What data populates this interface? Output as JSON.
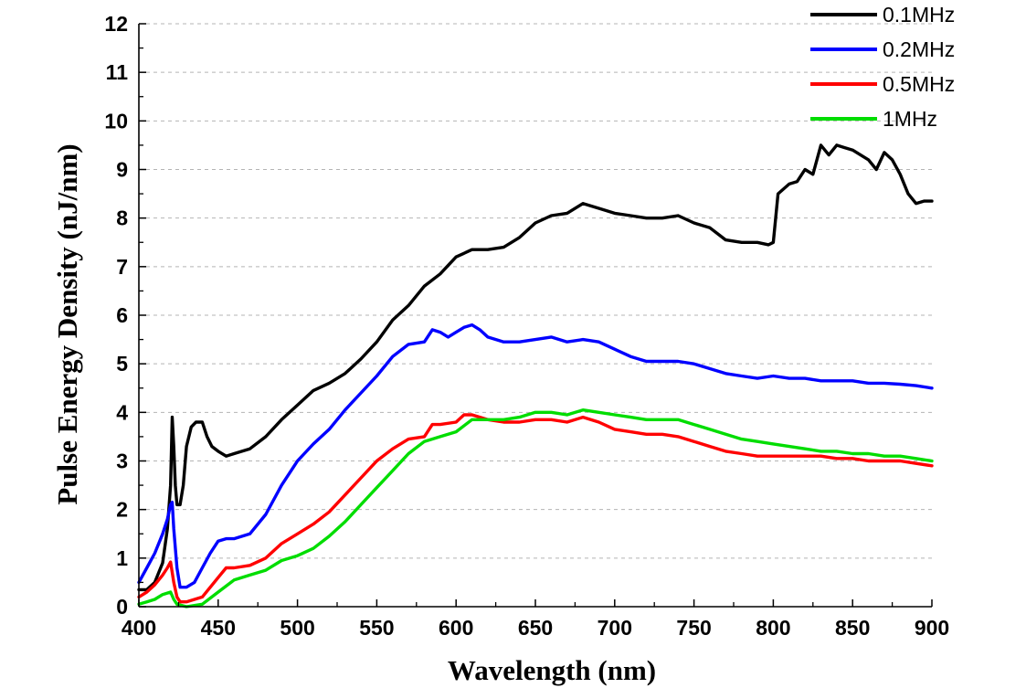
{
  "chart_data": {
    "type": "line",
    "title": "",
    "xlabel": "Wavelength (nm)",
    "ylabel": "Pulse Energy Density (nJ/nm)",
    "xlim": [
      400,
      900
    ],
    "ylim": [
      0,
      12
    ],
    "x_ticks": [
      400,
      450,
      500,
      550,
      600,
      650,
      700,
      750,
      800,
      850,
      900
    ],
    "y_ticks": [
      0,
      1,
      2,
      3,
      4,
      5,
      6,
      7,
      8,
      9,
      10,
      11,
      12
    ],
    "grid": "horizontal dashed",
    "legend_position": "top-right",
    "series": [
      {
        "name": "0.1MHz",
        "color": "#000000",
        "points": [
          [
            400,
            0.35
          ],
          [
            405,
            0.35
          ],
          [
            410,
            0.5
          ],
          [
            415,
            0.9
          ],
          [
            418,
            1.6
          ],
          [
            420,
            2.5
          ],
          [
            421,
            3.9
          ],
          [
            422,
            3.3
          ],
          [
            423,
            2.5
          ],
          [
            424,
            2.1
          ],
          [
            426,
            2.1
          ],
          [
            428,
            2.5
          ],
          [
            430,
            3.3
          ],
          [
            433,
            3.7
          ],
          [
            436,
            3.8
          ],
          [
            440,
            3.8
          ],
          [
            443,
            3.5
          ],
          [
            446,
            3.3
          ],
          [
            450,
            3.2
          ],
          [
            455,
            3.1
          ],
          [
            460,
            3.15
          ],
          [
            470,
            3.25
          ],
          [
            480,
            3.5
          ],
          [
            490,
            3.85
          ],
          [
            500,
            4.15
          ],
          [
            510,
            4.45
          ],
          [
            520,
            4.6
          ],
          [
            530,
            4.8
          ],
          [
            540,
            5.1
          ],
          [
            550,
            5.45
          ],
          [
            560,
            5.9
          ],
          [
            570,
            6.2
          ],
          [
            580,
            6.6
          ],
          [
            590,
            6.85
          ],
          [
            600,
            7.2
          ],
          [
            610,
            7.35
          ],
          [
            620,
            7.35
          ],
          [
            630,
            7.4
          ],
          [
            640,
            7.6
          ],
          [
            650,
            7.9
          ],
          [
            660,
            8.05
          ],
          [
            670,
            8.1
          ],
          [
            680,
            8.3
          ],
          [
            690,
            8.2
          ],
          [
            700,
            8.1
          ],
          [
            710,
            8.05
          ],
          [
            720,
            8.0
          ],
          [
            730,
            8.0
          ],
          [
            740,
            8.05
          ],
          [
            750,
            7.9
          ],
          [
            760,
            7.8
          ],
          [
            770,
            7.55
          ],
          [
            780,
            7.5
          ],
          [
            790,
            7.5
          ],
          [
            797,
            7.45
          ],
          [
            800,
            7.5
          ],
          [
            803,
            8.5
          ],
          [
            810,
            8.7
          ],
          [
            815,
            8.75
          ],
          [
            820,
            9.0
          ],
          [
            825,
            8.9
          ],
          [
            830,
            9.5
          ],
          [
            835,
            9.3
          ],
          [
            840,
            9.5
          ],
          [
            845,
            9.45
          ],
          [
            850,
            9.4
          ],
          [
            855,
            9.3
          ],
          [
            860,
            9.2
          ],
          [
            865,
            9.0
          ],
          [
            870,
            9.35
          ],
          [
            875,
            9.2
          ],
          [
            880,
            8.9
          ],
          [
            885,
            8.5
          ],
          [
            890,
            8.3
          ],
          [
            895,
            8.35
          ],
          [
            900,
            8.35
          ]
        ]
      },
      {
        "name": "0.2MHz",
        "color": "#0000ff",
        "points": [
          [
            400,
            0.5
          ],
          [
            405,
            0.8
          ],
          [
            410,
            1.1
          ],
          [
            415,
            1.5
          ],
          [
            418,
            1.8
          ],
          [
            420,
            2.1
          ],
          [
            421,
            2.15
          ],
          [
            422,
            1.6
          ],
          [
            424,
            0.8
          ],
          [
            426,
            0.4
          ],
          [
            430,
            0.4
          ],
          [
            435,
            0.5
          ],
          [
            440,
            0.8
          ],
          [
            445,
            1.1
          ],
          [
            450,
            1.35
          ],
          [
            455,
            1.4
          ],
          [
            460,
            1.4
          ],
          [
            470,
            1.5
          ],
          [
            480,
            1.9
          ],
          [
            490,
            2.5
          ],
          [
            500,
            3.0
          ],
          [
            510,
            3.35
          ],
          [
            520,
            3.65
          ],
          [
            530,
            4.05
          ],
          [
            540,
            4.4
          ],
          [
            550,
            4.75
          ],
          [
            560,
            5.15
          ],
          [
            570,
            5.4
          ],
          [
            580,
            5.45
          ],
          [
            585,
            5.7
          ],
          [
            590,
            5.65
          ],
          [
            595,
            5.55
          ],
          [
            600,
            5.65
          ],
          [
            605,
            5.75
          ],
          [
            610,
            5.8
          ],
          [
            615,
            5.7
          ],
          [
            620,
            5.55
          ],
          [
            630,
            5.45
          ],
          [
            640,
            5.45
          ],
          [
            650,
            5.5
          ],
          [
            660,
            5.55
          ],
          [
            670,
            5.45
          ],
          [
            680,
            5.5
          ],
          [
            690,
            5.45
          ],
          [
            700,
            5.3
          ],
          [
            710,
            5.15
          ],
          [
            720,
            5.05
          ],
          [
            730,
            5.05
          ],
          [
            740,
            5.05
          ],
          [
            750,
            5.0
          ],
          [
            760,
            4.9
          ],
          [
            770,
            4.8
          ],
          [
            780,
            4.75
          ],
          [
            790,
            4.7
          ],
          [
            800,
            4.75
          ],
          [
            810,
            4.7
          ],
          [
            820,
            4.7
          ],
          [
            830,
            4.65
          ],
          [
            840,
            4.65
          ],
          [
            850,
            4.65
          ],
          [
            860,
            4.6
          ],
          [
            870,
            4.6
          ],
          [
            880,
            4.58
          ],
          [
            890,
            4.55
          ],
          [
            900,
            4.5
          ]
        ]
      },
      {
        "name": "0.5MHz",
        "color": "#ff0000",
        "points": [
          [
            400,
            0.2
          ],
          [
            405,
            0.3
          ],
          [
            410,
            0.45
          ],
          [
            415,
            0.65
          ],
          [
            418,
            0.8
          ],
          [
            420,
            0.92
          ],
          [
            422,
            0.5
          ],
          [
            424,
            0.2
          ],
          [
            426,
            0.1
          ],
          [
            430,
            0.1
          ],
          [
            440,
            0.2
          ],
          [
            450,
            0.6
          ],
          [
            455,
            0.8
          ],
          [
            460,
            0.8
          ],
          [
            470,
            0.85
          ],
          [
            480,
            1.0
          ],
          [
            490,
            1.3
          ],
          [
            500,
            1.5
          ],
          [
            510,
            1.7
          ],
          [
            520,
            1.95
          ],
          [
            530,
            2.3
          ],
          [
            540,
            2.65
          ],
          [
            550,
            3.0
          ],
          [
            560,
            3.25
          ],
          [
            570,
            3.45
          ],
          [
            580,
            3.5
          ],
          [
            585,
            3.75
          ],
          [
            590,
            3.75
          ],
          [
            600,
            3.8
          ],
          [
            605,
            3.95
          ],
          [
            610,
            3.95
          ],
          [
            620,
            3.85
          ],
          [
            630,
            3.8
          ],
          [
            640,
            3.8
          ],
          [
            650,
            3.85
          ],
          [
            660,
            3.85
          ],
          [
            670,
            3.8
          ],
          [
            680,
            3.9
          ],
          [
            690,
            3.8
          ],
          [
            700,
            3.65
          ],
          [
            710,
            3.6
          ],
          [
            720,
            3.55
          ],
          [
            730,
            3.55
          ],
          [
            740,
            3.5
          ],
          [
            750,
            3.4
          ],
          [
            760,
            3.3
          ],
          [
            770,
            3.2
          ],
          [
            780,
            3.15
          ],
          [
            790,
            3.1
          ],
          [
            800,
            3.1
          ],
          [
            810,
            3.1
          ],
          [
            820,
            3.1
          ],
          [
            830,
            3.1
          ],
          [
            840,
            3.05
          ],
          [
            850,
            3.05
          ],
          [
            860,
            3.0
          ],
          [
            870,
            3.0
          ],
          [
            880,
            3.0
          ],
          [
            890,
            2.95
          ],
          [
            900,
            2.9
          ]
        ]
      },
      {
        "name": "1MHz",
        "color": "#00dd00",
        "points": [
          [
            400,
            0.05
          ],
          [
            405,
            0.1
          ],
          [
            410,
            0.15
          ],
          [
            415,
            0.25
          ],
          [
            420,
            0.3
          ],
          [
            422,
            0.15
          ],
          [
            424,
            0.05
          ],
          [
            430,
            0.0
          ],
          [
            440,
            0.05
          ],
          [
            450,
            0.3
          ],
          [
            460,
            0.55
          ],
          [
            470,
            0.65
          ],
          [
            480,
            0.75
          ],
          [
            490,
            0.95
          ],
          [
            500,
            1.05
          ],
          [
            510,
            1.2
          ],
          [
            520,
            1.45
          ],
          [
            530,
            1.75
          ],
          [
            540,
            2.1
          ],
          [
            550,
            2.45
          ],
          [
            560,
            2.8
          ],
          [
            570,
            3.15
          ],
          [
            580,
            3.4
          ],
          [
            590,
            3.5
          ],
          [
            600,
            3.6
          ],
          [
            610,
            3.85
          ],
          [
            620,
            3.85
          ],
          [
            630,
            3.85
          ],
          [
            640,
            3.9
          ],
          [
            650,
            4.0
          ],
          [
            660,
            4.0
          ],
          [
            670,
            3.95
          ],
          [
            680,
            4.05
          ],
          [
            690,
            4.0
          ],
          [
            700,
            3.95
          ],
          [
            710,
            3.9
          ],
          [
            720,
            3.85
          ],
          [
            730,
            3.85
          ],
          [
            740,
            3.85
          ],
          [
            750,
            3.75
          ],
          [
            760,
            3.65
          ],
          [
            770,
            3.55
          ],
          [
            780,
            3.45
          ],
          [
            790,
            3.4
          ],
          [
            800,
            3.35
          ],
          [
            810,
            3.3
          ],
          [
            820,
            3.25
          ],
          [
            830,
            3.2
          ],
          [
            840,
            3.2
          ],
          [
            850,
            3.15
          ],
          [
            860,
            3.15
          ],
          [
            870,
            3.1
          ],
          [
            880,
            3.1
          ],
          [
            890,
            3.05
          ],
          [
            900,
            3.0
          ]
        ]
      }
    ]
  }
}
